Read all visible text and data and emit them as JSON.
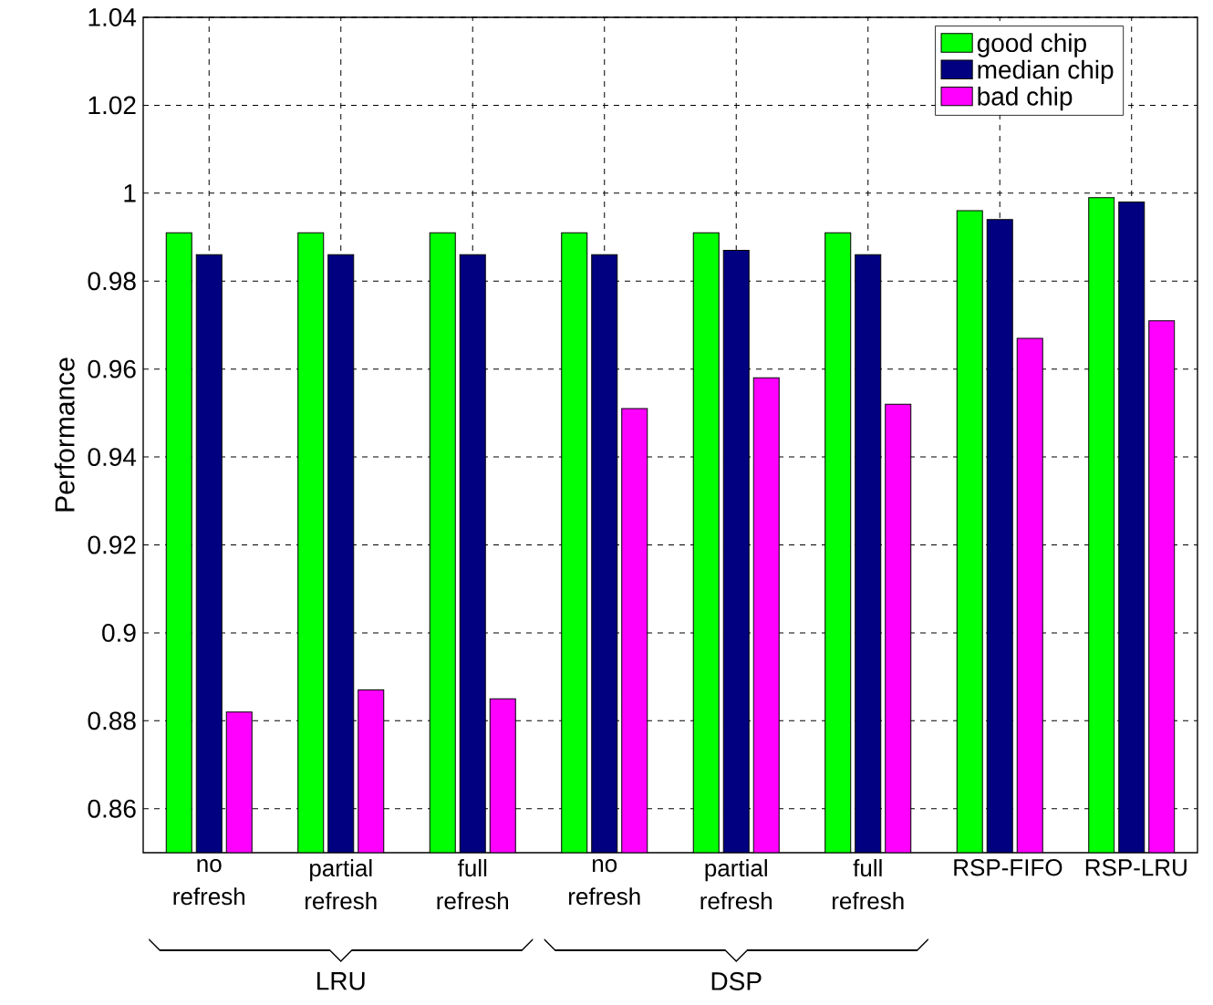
{
  "chart_data": {
    "type": "bar",
    "ylabel": "Performance",
    "categories": [
      "no refresh",
      "partial refresh",
      "full refresh",
      "no refresh",
      "partial refresh",
      "full refresh",
      "RSP-FIFO",
      "RSP-LRU"
    ],
    "series": [
      {
        "name": "good chip",
        "color": "#00ff00",
        "values": [
          0.991,
          0.991,
          0.991,
          0.991,
          0.991,
          0.991,
          0.996,
          0.999
        ]
      },
      {
        "name": "median chip",
        "color": "#000080",
        "values": [
          0.986,
          0.986,
          0.986,
          0.986,
          0.987,
          0.986,
          0.994,
          0.998
        ]
      },
      {
        "name": "bad chip",
        "color": "#ff00ff",
        "values": [
          0.882,
          0.887,
          0.885,
          0.951,
          0.958,
          0.952,
          0.967,
          0.971
        ]
      }
    ],
    "ylim": [
      0.85,
      1.04
    ],
    "yticks": [
      0.86,
      0.88,
      0.9,
      0.92,
      0.94,
      0.96,
      0.98,
      1,
      1.02,
      1.04
    ],
    "grid": true,
    "legend": "top right",
    "annotations": [
      "LRU",
      "DSP"
    ]
  }
}
